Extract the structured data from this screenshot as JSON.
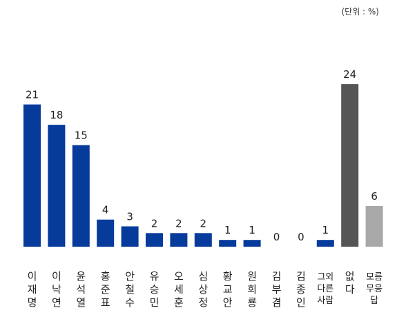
{
  "unit_label": "(단위 : %)",
  "colors": {
    "candidate": "#063b9c",
    "none": "#555555",
    "unknown": "#a8a8a8"
  },
  "chart_data": {
    "type": "bar",
    "title": "",
    "xlabel": "",
    "ylabel": "",
    "unit": "%",
    "ylim": [
      0,
      26
    ],
    "grid": false,
    "categories": [
      "이재명",
      "이낙연",
      "윤석열",
      "홍준표",
      "안철수",
      "유승민",
      "오세훈",
      "심상정",
      "황교안",
      "원희룡",
      "김부겸",
      "김종인",
      "그외 다른사람",
      "없다",
      "모름 무응답"
    ],
    "category_lines": [
      [
        "이",
        "재",
        "명"
      ],
      [
        "이",
        "낙",
        "연"
      ],
      [
        "윤",
        "석",
        "열"
      ],
      [
        "홍",
        "준",
        "표"
      ],
      [
        "안",
        "철",
        "수"
      ],
      [
        "유",
        "승",
        "민"
      ],
      [
        "오",
        "세",
        "훈"
      ],
      [
        "심",
        "상",
        "정"
      ],
      [
        "황",
        "교",
        "안"
      ],
      [
        "원",
        "희",
        "룡"
      ],
      [
        "김",
        "부",
        "겸"
      ],
      [
        "김",
        "종",
        "인"
      ],
      [
        "그외",
        "다른",
        "사람"
      ],
      [
        "없",
        "다"
      ],
      [
        "모름",
        "무응",
        "답"
      ]
    ],
    "values": [
      21,
      18,
      15,
      4,
      3,
      2,
      2,
      2,
      1,
      1,
      0,
      0,
      1,
      24,
      6
    ],
    "color_keys": [
      "candidate",
      "candidate",
      "candidate",
      "candidate",
      "candidate",
      "candidate",
      "candidate",
      "candidate",
      "candidate",
      "candidate",
      "candidate",
      "candidate",
      "candidate",
      "none",
      "unknown"
    ]
  }
}
